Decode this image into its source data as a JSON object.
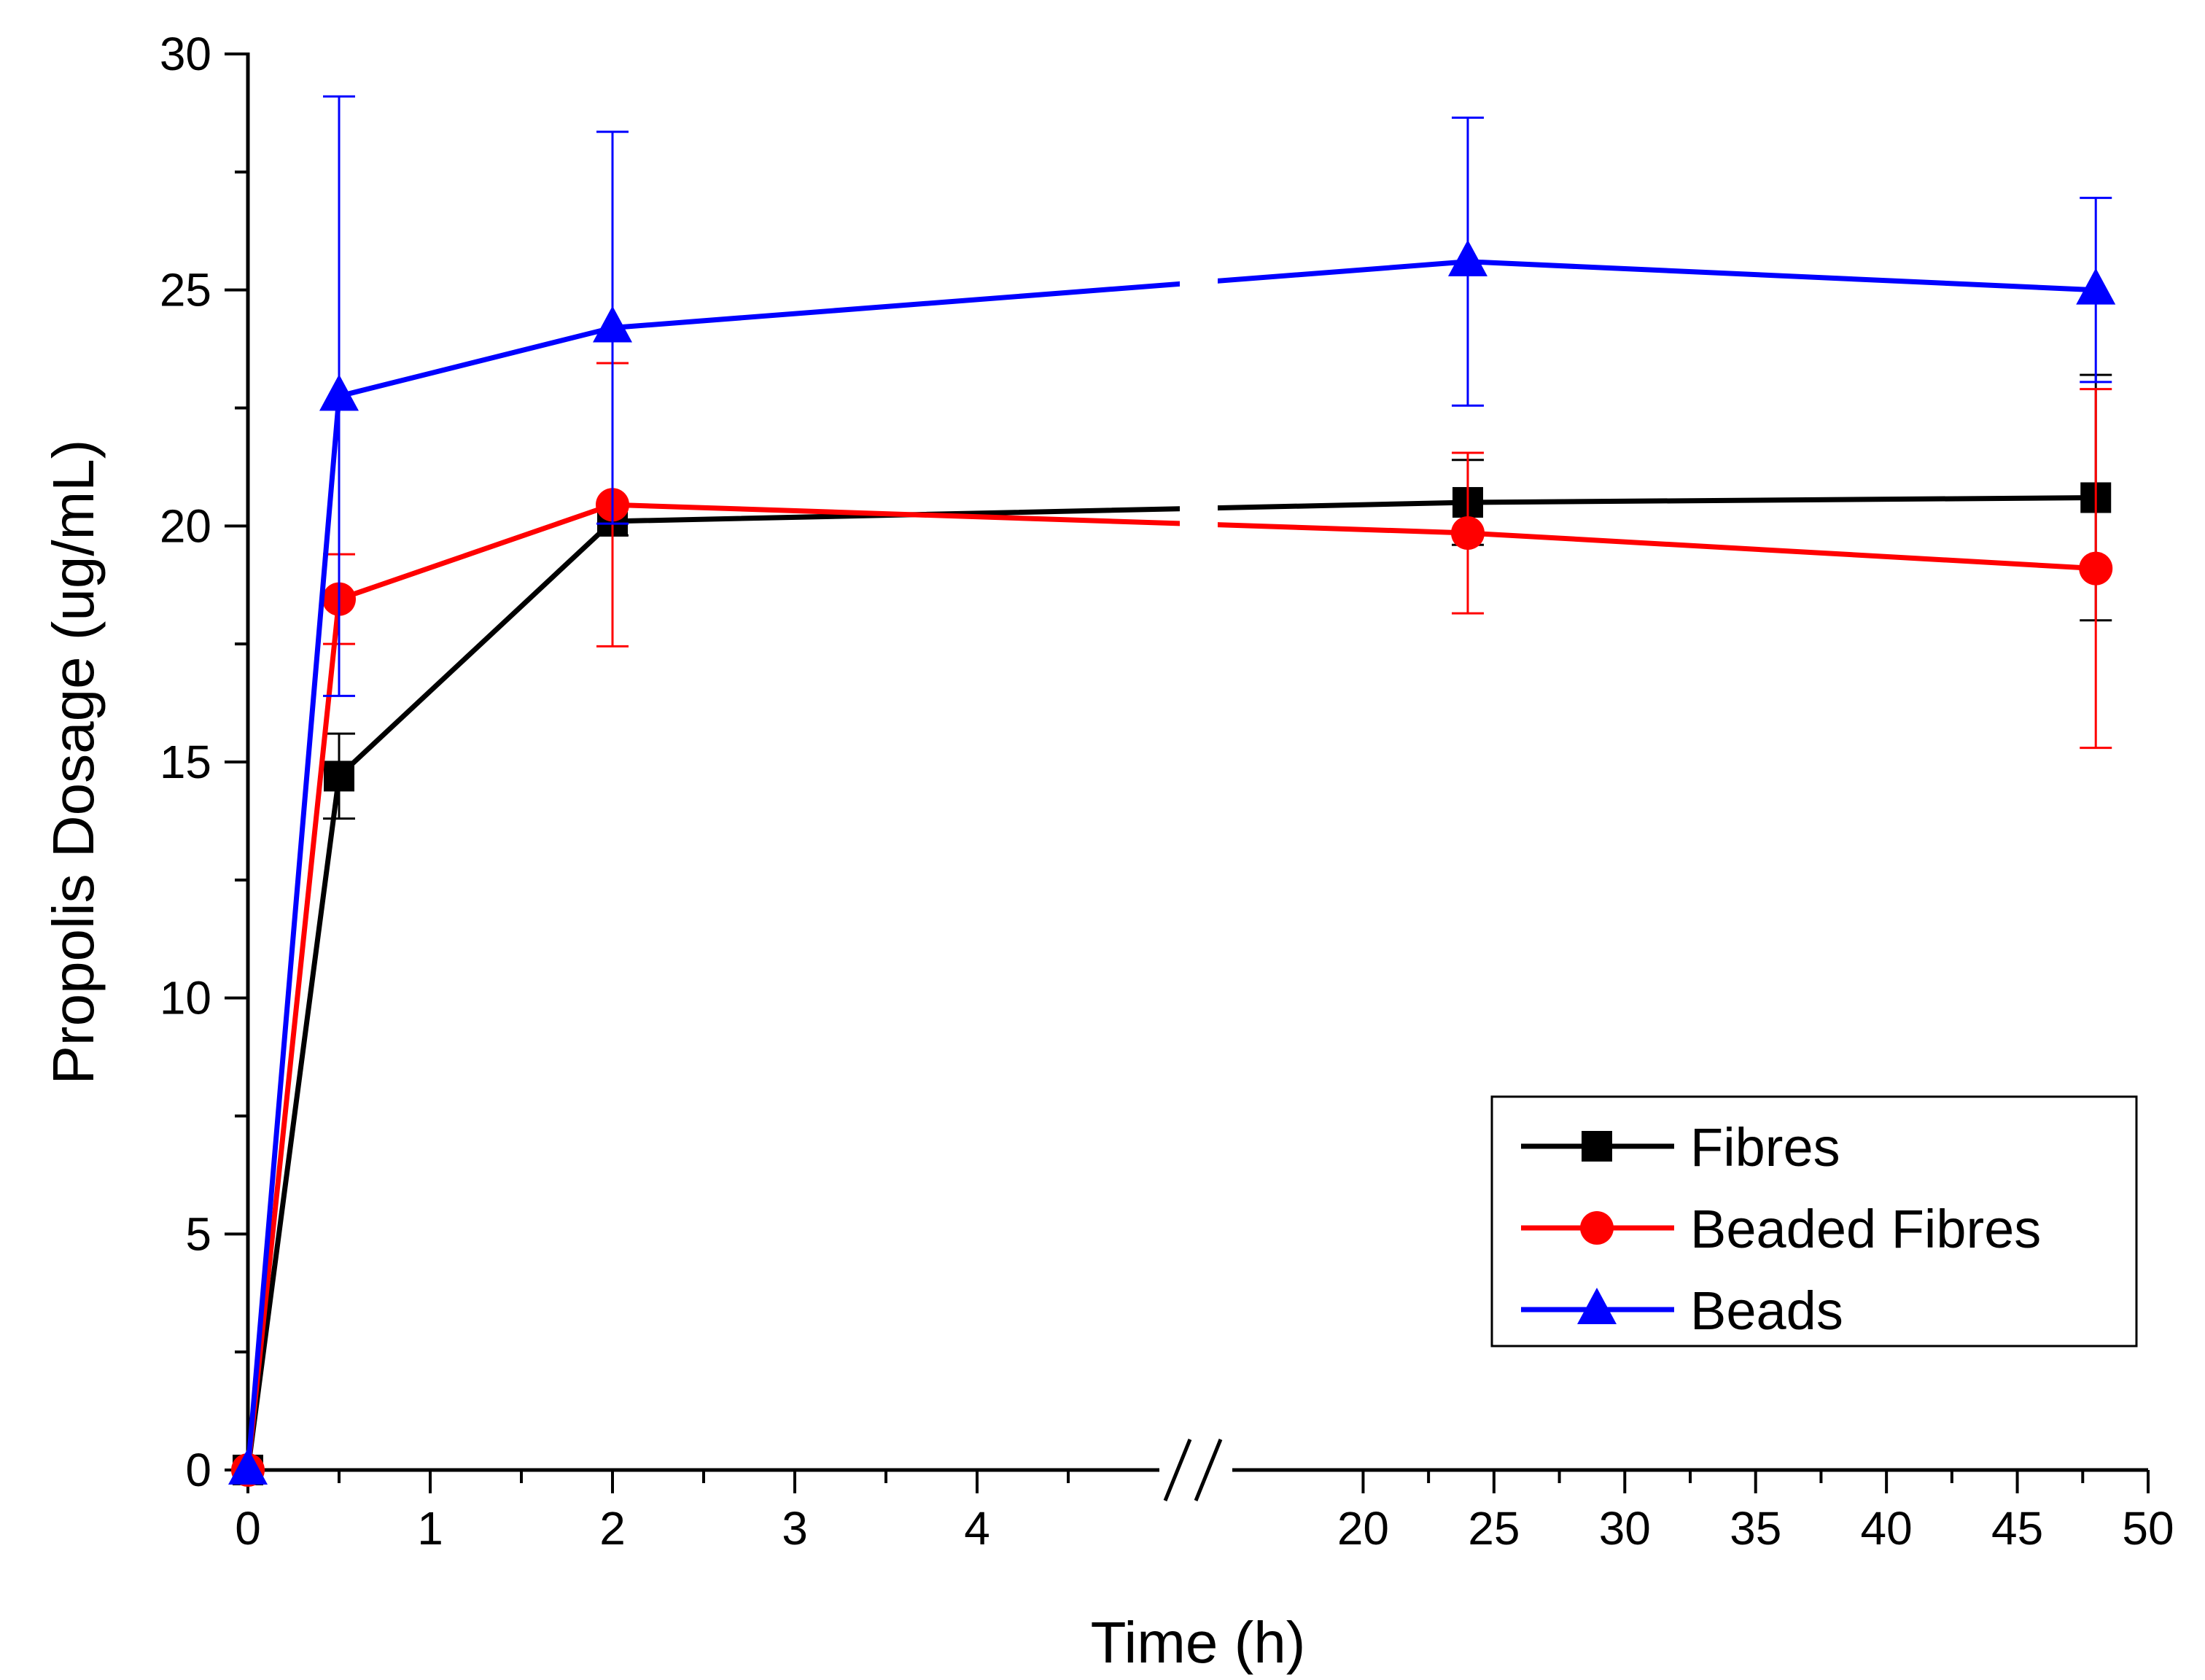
{
  "chart_data": {
    "type": "line",
    "title": "",
    "xlabel": "Time (h)",
    "ylabel": "Propolis Dosage  (ug/mL)",
    "ylim": [
      0,
      30
    ],
    "yticks": [
      0,
      5,
      10,
      15,
      20,
      25,
      30
    ],
    "x_axis": {
      "broken": true,
      "segment_1": {
        "range": [
          0,
          5
        ],
        "ticks": [
          0,
          1,
          2,
          3,
          4
        ]
      },
      "segment_2": {
        "range": [
          15,
          50
        ],
        "ticks": [
          20,
          25,
          30,
          35,
          40,
          45,
          50
        ]
      }
    },
    "x": [
      0,
      0.5,
      2,
      24,
      48
    ],
    "series": [
      {
        "name": "Fibres",
        "color": "#000000",
        "marker": "square",
        "values": [
          0,
          14.7,
          20.1,
          20.5,
          20.6
        ],
        "errors": [
          0,
          0.9,
          0.3,
          0.9,
          2.6
        ]
      },
      {
        "name": "Beaded Fibres",
        "color": "#ff0000",
        "marker": "circle",
        "values": [
          0,
          18.45,
          20.45,
          19.85,
          19.1
        ],
        "errors": [
          0,
          0.95,
          3.0,
          1.7,
          3.8
        ]
      },
      {
        "name": "Beads",
        "color": "#0000ff",
        "marker": "triangle",
        "values": [
          0,
          22.75,
          24.2,
          25.6,
          25.0
        ],
        "errors": [
          0,
          6.35,
          4.15,
          3.05,
          1.95
        ]
      }
    ],
    "legend": {
      "position": "bottom-right",
      "entries": [
        "Fibres",
        "Beaded Fibres",
        "Beads"
      ]
    }
  }
}
